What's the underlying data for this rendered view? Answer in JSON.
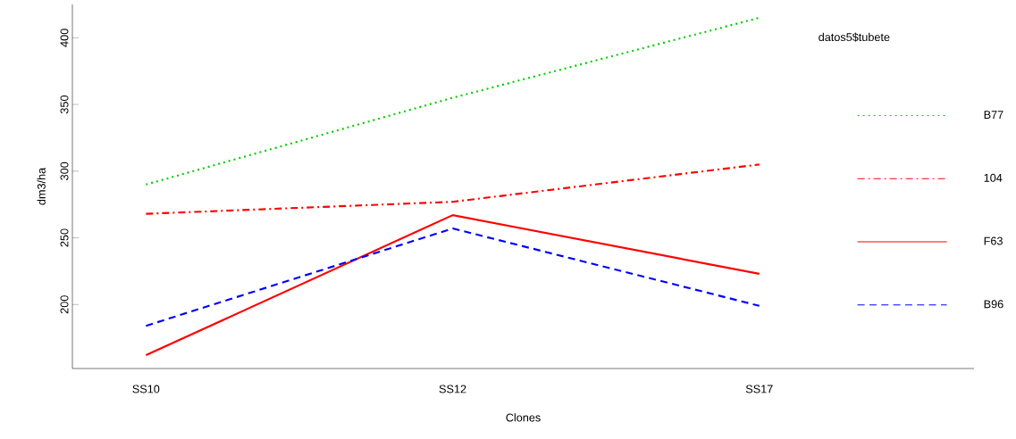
{
  "chart_data": {
    "type": "line",
    "xlabel": "Clones",
    "ylabel": "dm3/ha",
    "legend_title": "datos5$tubete",
    "categories": [
      "SS10",
      "SS12",
      "SS17"
    ],
    "series": [
      {
        "name": "B77",
        "color": "#00cd00",
        "line_style": "dotted",
        "values": [
          290,
          355,
          415
        ]
      },
      {
        "name": "104",
        "color": "#ff0000",
        "line_style": "dashdot",
        "values": [
          268,
          277,
          305
        ]
      },
      {
        "name": "F63",
        "color": "#ff0000",
        "line_style": "solid",
        "values": [
          162,
          267,
          223
        ]
      },
      {
        "name": "B96",
        "color": "#0000ff",
        "line_style": "dashed",
        "values": [
          184,
          257,
          199
        ]
      }
    ],
    "ylim": [
      152,
      425
    ],
    "yticks": [
      200,
      250,
      300,
      350,
      400
    ],
    "grid": false,
    "legend": "right"
  }
}
